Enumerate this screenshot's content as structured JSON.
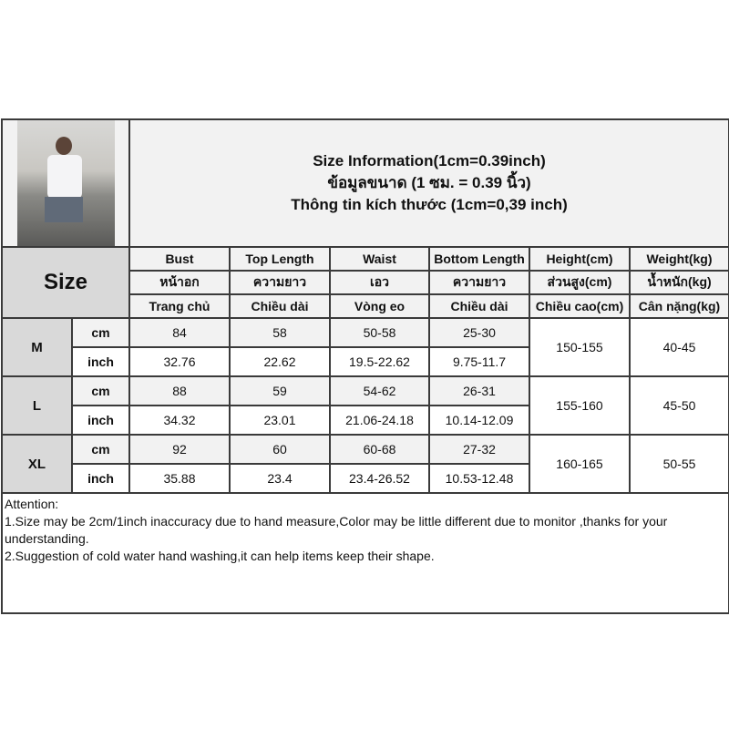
{
  "info": {
    "title_en": "Size Information(1cm=0.39inch)",
    "title_th": "ข้อมูลขนาด (1 ซม. = 0.39 นิ้ว)",
    "title_vi": "Thông tin kích thước (1cm=0,39 inch)"
  },
  "size_label": "Size",
  "columns": [
    {
      "en": "Bust",
      "th": "หน้าอก",
      "vi": "Trang chủ"
    },
    {
      "en": "Top Length",
      "th": "ความยาว",
      "vi": "Chiều dài"
    },
    {
      "en": "Waist",
      "th": "เอว",
      "vi": "Vòng eo"
    },
    {
      "en": "Bottom Length",
      "th": "ความยาว",
      "vi": "Chiều dài"
    },
    {
      "en": "Height(cm)",
      "th": "ส่วนสูง(cm)",
      "vi": "Chiều cao(cm)"
    },
    {
      "en": "Weight(kg)",
      "th": "น้ำหนัก(kg)",
      "vi": "Cân nặng(kg)"
    }
  ],
  "sizes": [
    {
      "name": "M",
      "cm": [
        "84",
        "58",
        "50-58",
        "25-30"
      ],
      "inch": [
        "32.76",
        "22.62",
        "19.5-22.62",
        "9.75-11.7"
      ],
      "height": "150-155",
      "weight": "40-45"
    },
    {
      "name": "L",
      "cm": [
        "88",
        "59",
        "54-62",
        "26-31"
      ],
      "inch": [
        "34.32",
        "23.01",
        "21.06-24.18",
        "10.14-12.09"
      ],
      "height": "155-160",
      "weight": "45-50"
    },
    {
      "name": "XL",
      "cm": [
        "92",
        "60",
        "60-68",
        "27-32"
      ],
      "inch": [
        "35.88",
        "23.4",
        "23.4-26.52",
        "10.53-12.48"
      ],
      "height": "160-165",
      "weight": "50-55"
    }
  ],
  "units": {
    "cm": "cm",
    "inch": "inch"
  },
  "attention": {
    "heading": "Attention:",
    "line1": "1.Size may be 2cm/1inch inaccuracy due to hand measure,Color may be little different due to monitor ,thanks for your understanding.",
    "line2": "2.Suggestion of cold water hand washing,it can help items keep their shape."
  }
}
